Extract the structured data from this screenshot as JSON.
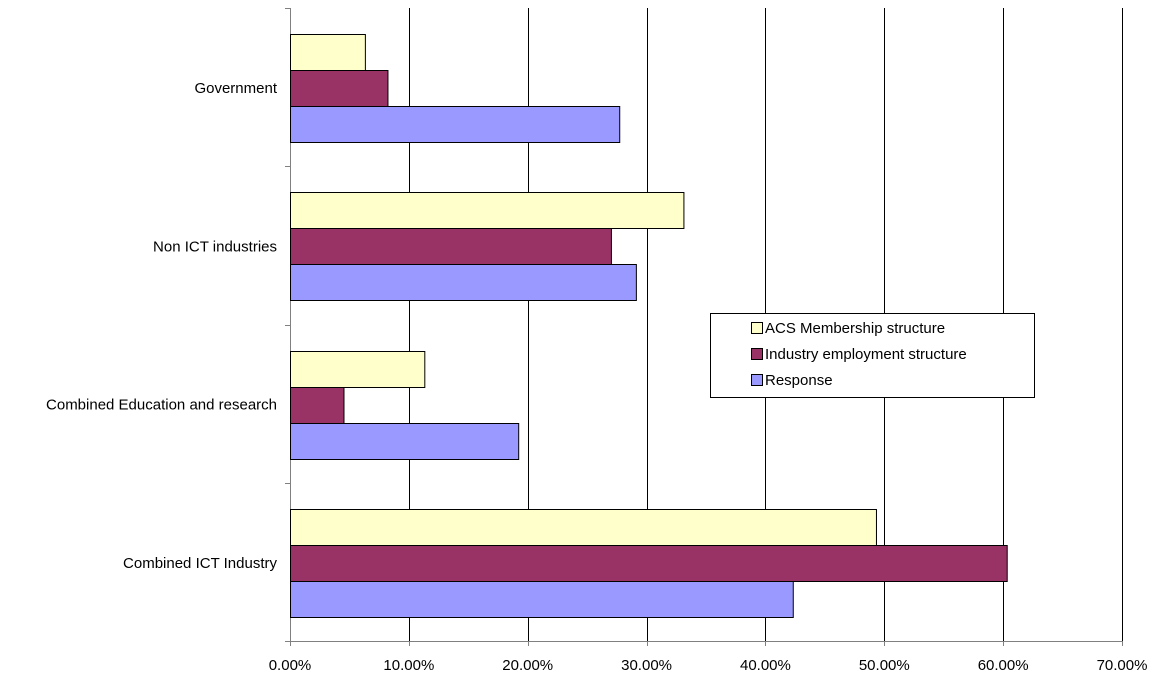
{
  "chart_data": {
    "type": "bar",
    "orientation": "horizontal",
    "title": "",
    "xlabel": "",
    "ylabel": "",
    "categories": [
      "Government",
      "Non ICT industries",
      "Combined Education and research",
      "Combined ICT Industry"
    ],
    "series": [
      {
        "name": "ACS Membership structure",
        "color": "#ffffcc",
        "values": [
          6.3,
          33.1,
          11.3,
          49.3
        ]
      },
      {
        "name": "Industry employment structure",
        "color": "#993366",
        "values": [
          8.2,
          27.0,
          4.5,
          60.3
        ]
      },
      {
        "name": "Response",
        "color": "#9999ff",
        "values": [
          27.7,
          29.1,
          19.2,
          42.3
        ]
      }
    ],
    "xlim": [
      0,
      70
    ],
    "xticks": [
      0,
      10,
      20,
      30,
      40,
      50,
      60,
      70
    ],
    "xtick_labels": [
      "0.00%",
      "10.00%",
      "20.00%",
      "30.00%",
      "40.00%",
      "50.00%",
      "60.00%",
      "70.00%"
    ],
    "grid": "vertical",
    "legend_position": "right-middle",
    "bar_outline_color": "#000000",
    "gridline_color": "#000000",
    "axis_color": "#808080"
  }
}
